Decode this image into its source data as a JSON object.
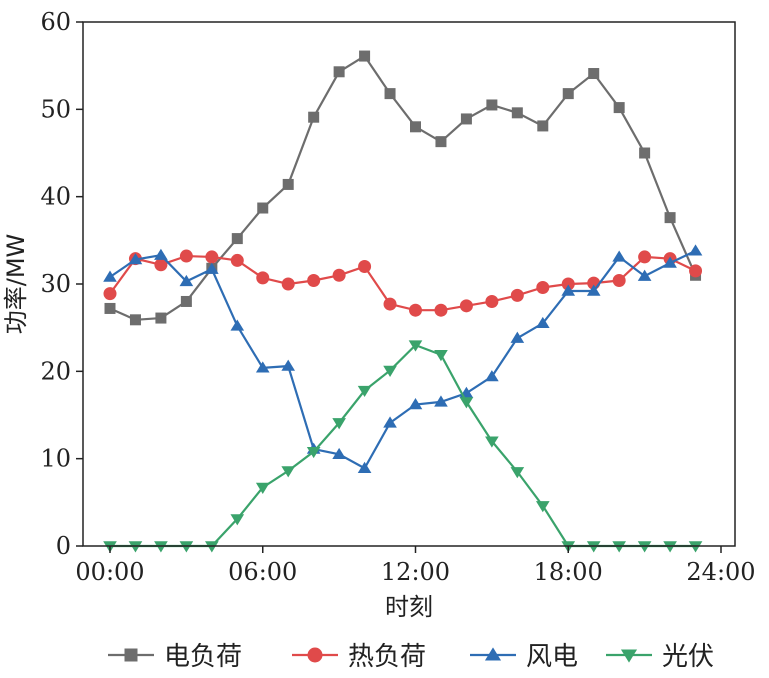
{
  "chart_data": {
    "type": "line",
    "xlabel": "时刻",
    "ylabel": "功率/MW",
    "xlim": [
      0,
      24
    ],
    "ylim": [
      0,
      60
    ],
    "x_ticks": [
      0,
      6,
      12,
      18,
      24
    ],
    "x_tick_labels": [
      "00:00",
      "06:00",
      "12:00",
      "18:00",
      "24:00"
    ],
    "y_ticks": [
      0,
      10,
      20,
      30,
      40,
      50,
      60
    ],
    "y_tick_labels": [
      "0",
      "10",
      "20",
      "30",
      "40",
      "50",
      "60"
    ],
    "grid": false,
    "legend_position": "bottom",
    "x": [
      0,
      1,
      2,
      3,
      4,
      5,
      6,
      7,
      8,
      9,
      10,
      11,
      12,
      13,
      14,
      15,
      16,
      17,
      18,
      19,
      20,
      21,
      22,
      23,
      24
    ],
    "series": [
      {
        "name": "电负荷",
        "color": "#6d6d6d",
        "marker": "square",
        "x": [
          0,
          1,
          2,
          3,
          4,
          5,
          6,
          7,
          8,
          9,
          10,
          11,
          12,
          13,
          14,
          15,
          16,
          17,
          18,
          19,
          20,
          21,
          22,
          23
        ],
        "values": [
          27.2,
          25.9,
          26.1,
          28.0,
          31.8,
          35.2,
          38.7,
          41.4,
          49.1,
          54.3,
          56.1,
          51.8,
          48.0,
          46.3,
          48.9,
          50.5,
          49.6,
          48.1,
          51.8,
          54.1,
          50.2,
          45.0,
          37.6,
          31.0
        ]
      },
      {
        "name": "热负荷",
        "color": "#e04a4a",
        "marker": "circle",
        "x": [
          0,
          1,
          2,
          3,
          4,
          5,
          6,
          7,
          8,
          9,
          10,
          11,
          12,
          13,
          14,
          15,
          16,
          17,
          18,
          19,
          20,
          21,
          22,
          23
        ],
        "values": [
          28.9,
          32.9,
          32.2,
          33.2,
          33.1,
          32.7,
          30.7,
          30.0,
          30.4,
          31.0,
          32.0,
          27.7,
          27.0,
          27.0,
          27.5,
          28.0,
          28.7,
          29.6,
          30.0,
          30.1,
          30.4,
          33.1,
          32.9,
          31.5
        ]
      },
      {
        "name": "风电",
        "color": "#2e6db4",
        "marker": "triangle-up",
        "x": [
          0,
          1,
          2,
          3,
          4,
          5,
          6,
          7,
          8,
          9,
          10,
          11,
          12,
          13,
          14,
          15,
          16,
          17,
          18,
          19,
          20,
          21,
          22,
          23
        ],
        "values": [
          30.8,
          32.8,
          33.3,
          30.3,
          31.7,
          25.2,
          20.4,
          20.6,
          11.1,
          10.5,
          8.9,
          14.1,
          16.2,
          16.5,
          17.5,
          19.4,
          23.8,
          25.5,
          29.2,
          29.2,
          33.1,
          30.9,
          32.4,
          33.8
        ]
      },
      {
        "name": "光伏",
        "color": "#3aa36b",
        "marker": "triangle-down",
        "x": [
          0,
          1,
          2,
          3,
          4,
          5,
          6,
          7,
          8,
          9,
          10,
          11,
          12,
          13,
          14,
          15,
          16,
          17,
          18,
          19,
          20,
          21,
          22,
          23
        ],
        "values": [
          0,
          0,
          0,
          0,
          0,
          3.1,
          6.7,
          8.6,
          10.8,
          14.1,
          17.8,
          20.1,
          23.0,
          21.9,
          16.5,
          12.0,
          8.5,
          4.6,
          0,
          0,
          0,
          0,
          0,
          0
        ]
      }
    ]
  }
}
